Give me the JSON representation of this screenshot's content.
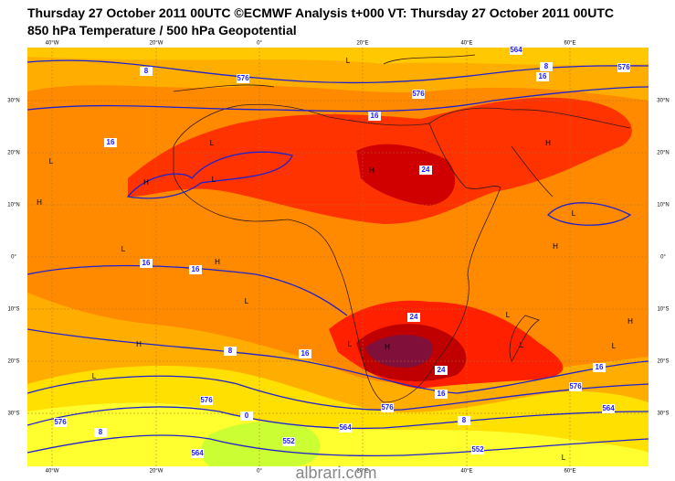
{
  "header": {
    "title": "Thursday 27 October 2011 00UTC ©ECMWF Analysis t+000 VT: Thursday 27 October 2011 00UTC",
    "subtitle": "850 hPa Temperature / 500 hPa Geopotential"
  },
  "longitude_labels": [
    "40°W",
    "20°W",
    "0°",
    "20°E",
    "40°E",
    "60°E"
  ],
  "latitude_labels": [
    "30°N",
    "20°N",
    "10°N",
    "0°",
    "10°S",
    "20°S",
    "30°S"
  ],
  "pressure_systems": [
    "L",
    "H",
    "L",
    "H",
    "L",
    "H",
    "L",
    "L",
    "H",
    "L",
    "H",
    "L",
    "H",
    "L",
    "H",
    "L",
    "H",
    "L",
    "L",
    "H",
    "L",
    "L"
  ],
  "contour_labels": [
    "8",
    "576",
    "576",
    "16",
    "8",
    "16",
    "16",
    "24",
    "576",
    "16",
    "16",
    "8",
    "16",
    "24",
    "24",
    "16",
    "16",
    "576",
    "576",
    "576",
    "576",
    "564",
    "564",
    "552",
    "552",
    "8",
    "0",
    "8",
    "564",
    "564"
  ],
  "watermark": "albrari.com"
}
